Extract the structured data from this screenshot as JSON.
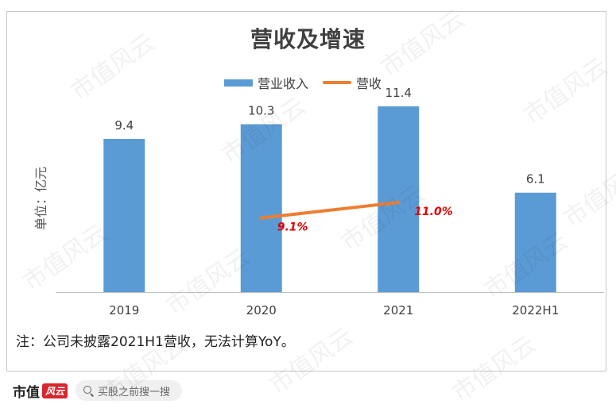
{
  "watermark": "市值风云",
  "chart_data": {
    "type": "bar",
    "title": "营收及增速",
    "ylabel": "单位：亿元",
    "categories": [
      "2019",
      "2020",
      "2021",
      "2022H1"
    ],
    "ylim": [
      0,
      15
    ],
    "series": [
      {
        "name": "营业收入",
        "kind": "bar",
        "color": "#5b9bd5",
        "values": [
          9.4,
          10.3,
          11.4,
          6.1
        ],
        "labels": [
          "9.4",
          "10.3",
          "11.4",
          "6.1"
        ]
      },
      {
        "name": "营收",
        "kind": "line",
        "color": "#ed7d31",
        "values": [
          null,
          9.1,
          11.0,
          null
        ],
        "labels": [
          "",
          "9.1%",
          "11.0%",
          ""
        ],
        "label_color": "#e00000",
        "unit": "%",
        "ylim": [
          0,
          30
        ]
      }
    ],
    "grid": false,
    "legend_position": "top"
  },
  "note": "注：公司未披露2021H1营收，无法计算YoY。",
  "footer": {
    "brand": "市值",
    "brand_mark": "风云",
    "search_placeholder": "买股之前搜一搜"
  }
}
